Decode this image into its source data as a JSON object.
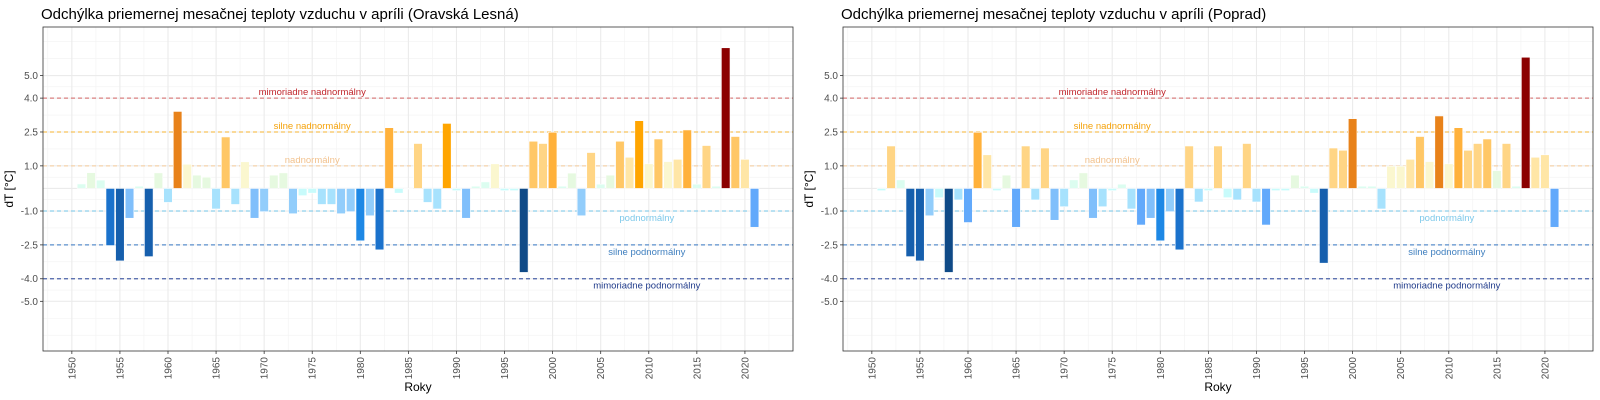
{
  "chart_data": [
    {
      "type": "bar",
      "title": "Odchýlka priemernej mesačnej teploty vzduchu v apríli (Oravská Lesná)",
      "xlabel": "Roky",
      "ylabel": "dT [°C]",
      "xlim": [
        1947,
        2025
      ],
      "ylim": [
        -7.2,
        7.15
      ],
      "x_ticks": [
        1950,
        1955,
        1960,
        1965,
        1970,
        1975,
        1980,
        1985,
        1990,
        1995,
        2000,
        2005,
        2010,
        2015,
        2020
      ],
      "y_ticks": [
        5.0,
        4.0,
        2.5,
        1.0,
        -1.0,
        -2.5,
        -4.0,
        -5.0
      ],
      "y_tick_labels": [
        "5.0",
        "4.0",
        "2.5",
        "1.0",
        "-1.0",
        "-2.5",
        "-4.0",
        "-5.0"
      ],
      "grid": true,
      "thresholds": [
        {
          "value": 4.0,
          "label": "mimoriadne nadnormálny",
          "color": "#c0272d",
          "line_color": "#d98080"
        },
        {
          "value": 2.5,
          "label": "silne nadnormálny",
          "color": "#f5a20a",
          "line_color": "#f7c25a"
        },
        {
          "value": 1.0,
          "label": "nadnormálny",
          "color": "#f2c28e",
          "line_color": "#f6d3ab"
        },
        {
          "value": -1.0,
          "label": "podnormálny",
          "color": "#7ec9ea",
          "line_color": "#8fd0ec"
        },
        {
          "value": -2.5,
          "label": "silne podnormálny",
          "color": "#3f7fbf",
          "line_color": "#5b8fcc"
        },
        {
          "value": -4.0,
          "label": "mimoriadne podnormálny",
          "color": "#1f3a8a",
          "line_color": "#4a62a8"
        }
      ],
      "x": [
        1951,
        1952,
        1953,
        1954,
        1955,
        1956,
        1957,
        1958,
        1959,
        1960,
        1961,
        1962,
        1963,
        1964,
        1965,
        1966,
        1967,
        1968,
        1969,
        1970,
        1971,
        1972,
        1973,
        1974,
        1975,
        1976,
        1977,
        1978,
        1979,
        1980,
        1981,
        1982,
        1983,
        1984,
        1985,
        1986,
        1987,
        1988,
        1989,
        1990,
        1991,
        1992,
        1993,
        1994,
        1995,
        1996,
        1997,
        1998,
        1999,
        2000,
        2001,
        2002,
        2003,
        2004,
        2005,
        2006,
        2007,
        2008,
        2009,
        2010,
        2011,
        2012,
        2013,
        2014,
        2015,
        2016,
        2017,
        2018,
        2019,
        2020,
        2021
      ],
      "values": [
        0.2,
        0.7,
        0.37,
        -2.53,
        -3.21,
        -1.32,
        0.1,
        -3.02,
        0.69,
        -0.62,
        3.41,
        1.07,
        0.59,
        0.5,
        -0.91,
        2.28,
        -0.71,
        1.18,
        -1.32,
        -1.03,
        0.59,
        0.69,
        -1.12,
        -0.32,
        -0.21,
        -0.71,
        -0.71,
        -1.12,
        -1.03,
        -2.32,
        -1.21,
        -2.72,
        2.69,
        -0.21,
        0.0,
        1.99,
        -0.62,
        -0.91,
        2.88,
        -0.1,
        -1.32,
        0.1,
        0.29,
        1.09,
        -0.1,
        -0.1,
        -3.72,
        2.09,
        1.99,
        2.49,
        0.1,
        0.68,
        -1.21,
        1.59,
        0.19,
        0.59,
        2.09,
        1.38,
        3.0,
        1.09,
        2.19,
        1.19,
        1.29,
        2.59,
        0.19,
        1.9,
        0.1,
        6.23,
        2.3,
        1.29,
        -1.72
      ]
    },
    {
      "type": "bar",
      "title": "Odchýlka priemernej mesačnej teploty vzduchu v apríli (Poprad)",
      "xlabel": "Roky",
      "ylabel": "dT [°C]",
      "xlim": [
        1947,
        2025
      ],
      "ylim": [
        -7.2,
        7.15
      ],
      "x_ticks": [
        1950,
        1955,
        1960,
        1965,
        1970,
        1975,
        1980,
        1985,
        1990,
        1995,
        2000,
        2005,
        2010,
        2015,
        2020
      ],
      "y_ticks": [
        5.0,
        4.0,
        2.5,
        1.0,
        -1.0,
        -2.5,
        -4.0,
        -5.0
      ],
      "y_tick_labels": [
        "5.0",
        "4.0",
        "2.5",
        "1.0",
        "-1.0",
        "-2.5",
        "-4.0",
        "-5.0"
      ],
      "grid": true,
      "thresholds": [
        {
          "value": 4.0,
          "label": "mimoriadne nadnormálny",
          "color": "#c0272d",
          "line_color": "#d98080"
        },
        {
          "value": 2.5,
          "label": "silne nadnormálny",
          "color": "#f5a20a",
          "line_color": "#f7c25a"
        },
        {
          "value": 1.0,
          "label": "nadnormálny",
          "color": "#f2c28e",
          "line_color": "#f6d3ab"
        },
        {
          "value": -1.0,
          "label": "podnormálny",
          "color": "#7ec9ea",
          "line_color": "#8fd0ec"
        },
        {
          "value": -2.5,
          "label": "silne podnormálny",
          "color": "#3f7fbf",
          "line_color": "#5b8fcc"
        },
        {
          "value": -4.0,
          "label": "mimoriadne podnormálny",
          "color": "#1f3a8a",
          "line_color": "#4a62a8"
        }
      ],
      "x": [
        1951,
        1952,
        1953,
        1954,
        1955,
        1956,
        1957,
        1958,
        1959,
        1960,
        1961,
        1962,
        1963,
        1964,
        1965,
        1966,
        1967,
        1968,
        1969,
        1970,
        1971,
        1972,
        1973,
        1974,
        1975,
        1976,
        1977,
        1978,
        1979,
        1980,
        1981,
        1982,
        1983,
        1984,
        1985,
        1986,
        1987,
        1988,
        1989,
        1990,
        1991,
        1992,
        1993,
        1994,
        1995,
        1996,
        1997,
        1998,
        1999,
        2000,
        2001,
        2002,
        2003,
        2004,
        2005,
        2006,
        2007,
        2008,
        2009,
        2010,
        2011,
        2012,
        2013,
        2014,
        2015,
        2016,
        2017,
        2018,
        2019,
        2020,
        2021
      ],
      "values": [
        -0.1,
        1.88,
        0.38,
        -3.02,
        -3.21,
        -1.21,
        -0.41,
        -3.72,
        -0.51,
        -1.51,
        2.49,
        1.49,
        -0.1,
        0.59,
        -1.72,
        1.88,
        -0.51,
        1.79,
        -1.41,
        -0.81,
        0.38,
        0.69,
        -1.32,
        -0.81,
        -0.1,
        0.19,
        -0.91,
        -1.62,
        -1.32,
        -2.32,
        -1.03,
        -2.72,
        1.88,
        -0.6,
        -0.1,
        1.88,
        -0.41,
        -0.51,
        1.99,
        -0.6,
        -1.62,
        -0.1,
        -0.1,
        0.59,
        0.1,
        -0.21,
        -3.31,
        1.79,
        1.69,
        3.09,
        0.1,
        0.1,
        -0.91,
        0.99,
        0.99,
        1.29,
        2.3,
        1.19,
        3.21,
        1.09,
        2.69,
        1.69,
        1.99,
        2.19,
        0.79,
        1.99,
        0.1,
        5.81,
        1.38,
        1.49,
        -1.72
      ]
    }
  ]
}
